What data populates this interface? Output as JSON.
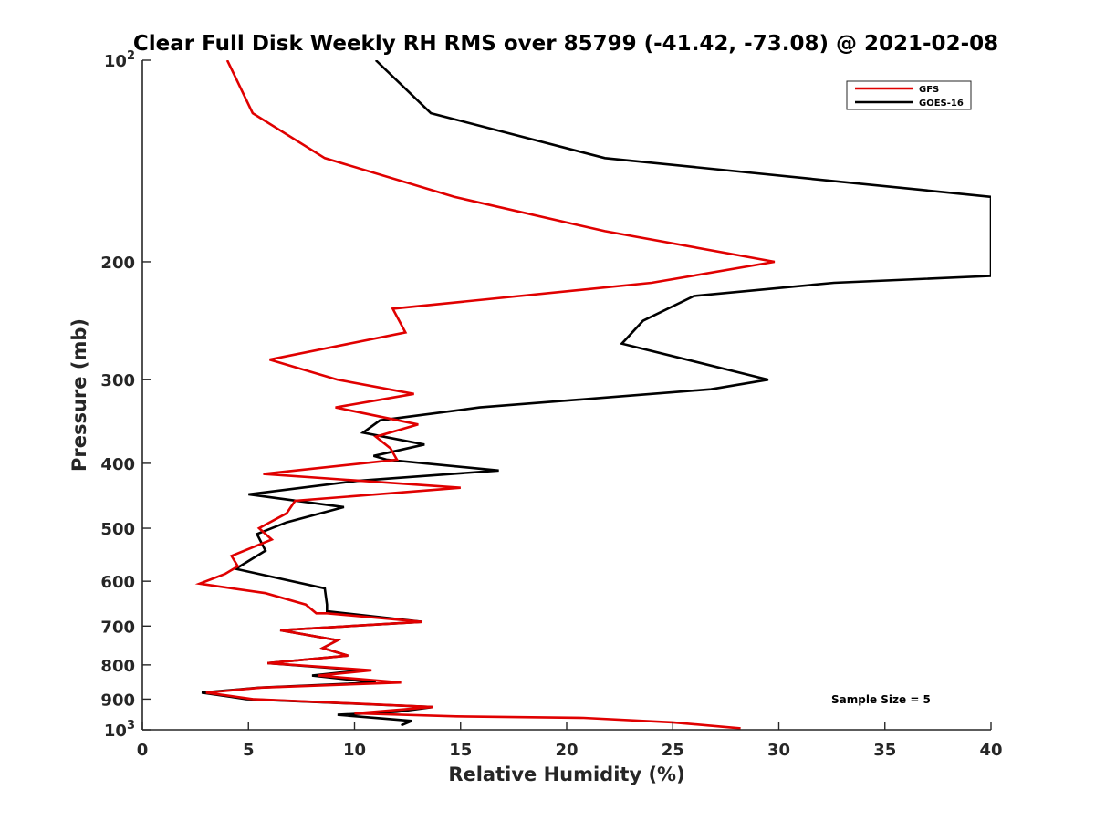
{
  "chart_data": {
    "type": "line",
    "title": "Clear Full Disk Weekly RH RMS over 85799 (-41.42, -73.08) @ 2021-02-08",
    "xlabel": "Relative Humidity (%)",
    "ylabel": "Pressure (mb)",
    "xlim": [
      0,
      40
    ],
    "ylim": [
      100,
      1000
    ],
    "y_scale": "log",
    "y_reversed": true,
    "x_ticks": [
      "0",
      "5",
      "10",
      "15",
      "20",
      "25",
      "30",
      "35",
      "40"
    ],
    "y_ticks": [
      {
        "value": 100,
        "base": "10",
        "exp": "2"
      },
      {
        "value": 200,
        "label": "200"
      },
      {
        "value": 300,
        "label": "300"
      },
      {
        "value": 400,
        "label": "400"
      },
      {
        "value": 500,
        "label": "500"
      },
      {
        "value": 600,
        "label": "600"
      },
      {
        "value": 700,
        "label": "700"
      },
      {
        "value": 800,
        "label": "800"
      },
      {
        "value": 900,
        "label": "900"
      },
      {
        "value": 1000,
        "base": "10",
        "exp": "3"
      }
    ],
    "grid": false,
    "legend_position": "top-right",
    "annotation": "Sample Size = 5",
    "series": [
      {
        "name": "GFS",
        "color": "#e00000",
        "points": [
          [
            4.0,
            100
          ],
          [
            5.2,
            120
          ],
          [
            8.6,
            140
          ],
          [
            14.7,
            160
          ],
          [
            21.8,
            180
          ],
          [
            29.8,
            200
          ],
          [
            24.0,
            215
          ],
          [
            11.8,
            235
          ],
          [
            12.4,
            255
          ],
          [
            6.0,
            280
          ],
          [
            9.2,
            300
          ],
          [
            12.8,
            315
          ],
          [
            9.1,
            330
          ],
          [
            13.0,
            350
          ],
          [
            11.0,
            365
          ],
          [
            11.7,
            380
          ],
          [
            12.0,
            395
          ],
          [
            5.7,
            415
          ],
          [
            15.0,
            435
          ],
          [
            7.2,
            455
          ],
          [
            6.8,
            475
          ],
          [
            5.5,
            500
          ],
          [
            6.1,
            520
          ],
          [
            4.2,
            550
          ],
          [
            4.5,
            570
          ],
          [
            3.9,
            585
          ],
          [
            2.7,
            605
          ],
          [
            5.8,
            625
          ],
          [
            7.7,
            650
          ],
          [
            8.2,
            670
          ],
          [
            8.7,
            670
          ],
          [
            13.2,
            690
          ],
          [
            6.5,
            710
          ],
          [
            9.2,
            735
          ],
          [
            8.5,
            755
          ],
          [
            9.7,
            775
          ],
          [
            5.9,
            795
          ],
          [
            10.8,
            815
          ],
          [
            8.3,
            830
          ],
          [
            12.2,
            850
          ],
          [
            5.6,
            865
          ],
          [
            3.0,
            880
          ],
          [
            5.2,
            900
          ],
          [
            13.7,
            925
          ],
          [
            10.0,
            945
          ],
          [
            14.8,
            955
          ],
          [
            20.8,
            960
          ],
          [
            25.0,
            975
          ],
          [
            28.2,
            995
          ]
        ]
      },
      {
        "name": "GOES-16",
        "color": "#000000",
        "points": [
          [
            11.0,
            100
          ],
          [
            13.6,
            120
          ],
          [
            21.8,
            140
          ],
          [
            40.0,
            160
          ],
          [
            40.0,
            210
          ],
          [
            32.6,
            215
          ],
          [
            26.0,
            225
          ],
          [
            23.6,
            245
          ],
          [
            22.6,
            265
          ],
          [
            29.5,
            300
          ],
          [
            26.8,
            310
          ],
          [
            15.9,
            330
          ],
          [
            11.2,
            345
          ],
          [
            10.4,
            360
          ],
          [
            13.3,
            375
          ],
          [
            10.9,
            390
          ],
          [
            11.5,
            395
          ],
          [
            16.8,
            410
          ],
          [
            10.1,
            425
          ],
          [
            5.0,
            445
          ],
          [
            9.5,
            465
          ],
          [
            6.8,
            490
          ],
          [
            5.4,
            510
          ],
          [
            5.8,
            540
          ],
          [
            4.4,
            575
          ],
          [
            8.6,
            615
          ],
          [
            8.7,
            650
          ],
          [
            8.7,
            665
          ],
          [
            13.2,
            690
          ],
          [
            6.5,
            710
          ],
          [
            9.2,
            735
          ],
          [
            8.5,
            755
          ],
          [
            9.7,
            775
          ],
          [
            5.9,
            795
          ],
          [
            10.3,
            815
          ],
          [
            8.0,
            830
          ],
          [
            11.0,
            850
          ],
          [
            5.5,
            865
          ],
          [
            2.8,
            880
          ],
          [
            4.9,
            900
          ],
          [
            13.7,
            925
          ],
          [
            12.0,
            940
          ],
          [
            9.2,
            950
          ],
          [
            12.7,
            970
          ],
          [
            12.2,
            985
          ]
        ]
      }
    ]
  }
}
